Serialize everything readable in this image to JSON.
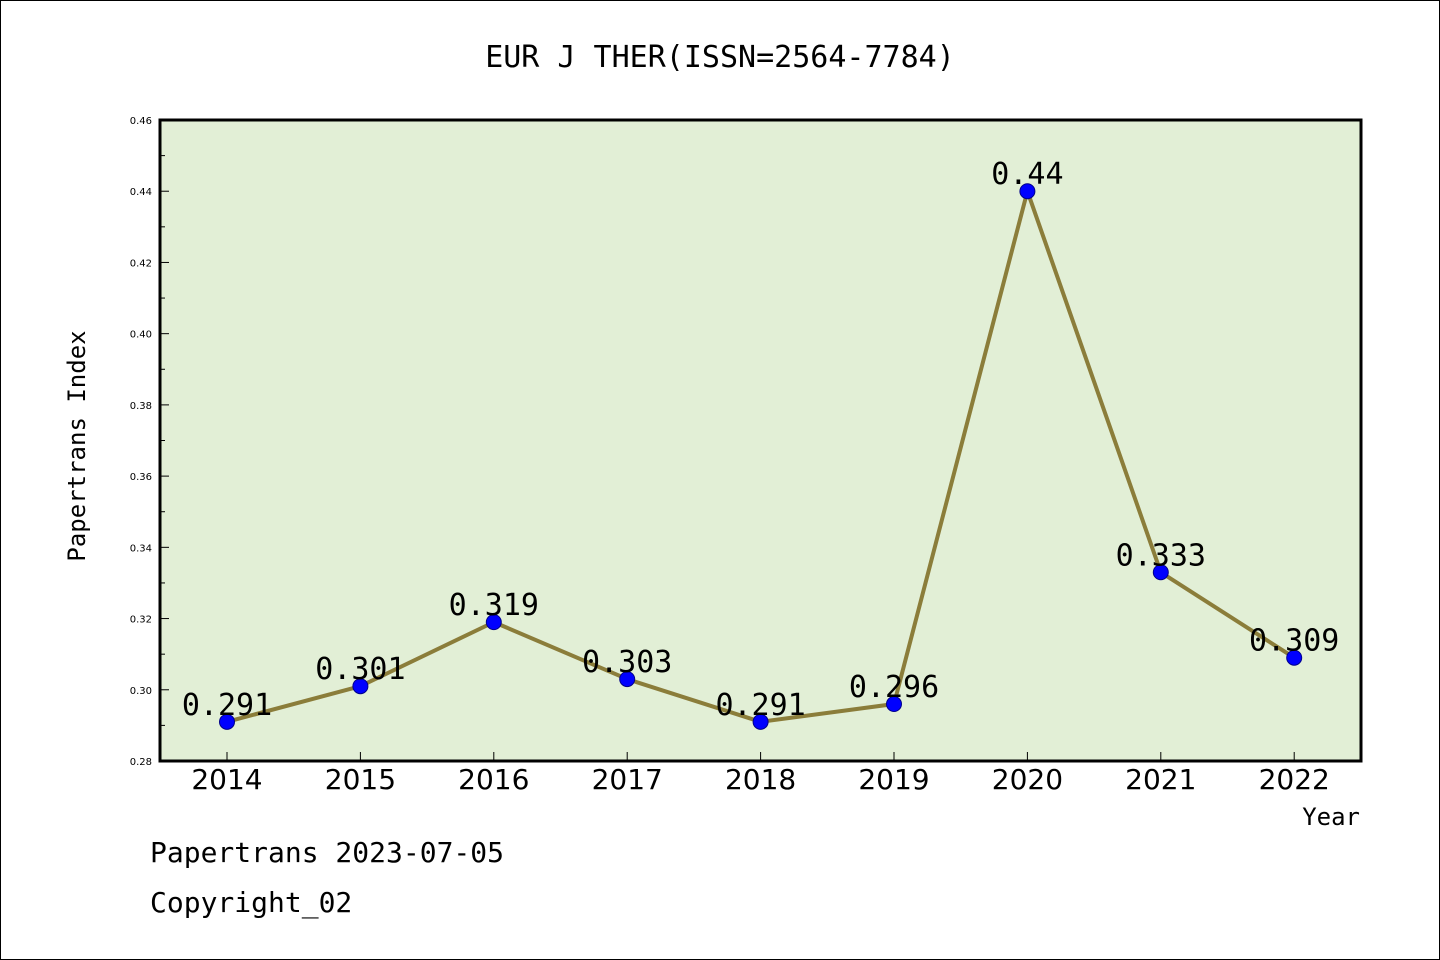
{
  "chart_data": {
    "type": "line",
    "title": "EUR J THER(ISSN=2564-7784)",
    "xlabel": "Year",
    "ylabel": "Papertrans Index",
    "categories": [
      "2014",
      "2015",
      "2016",
      "2017",
      "2018",
      "2019",
      "2020",
      "2021",
      "2022"
    ],
    "values": [
      0.291,
      0.301,
      0.319,
      0.303,
      0.291,
      0.296,
      0.44,
      0.333,
      0.309
    ],
    "data_labels": [
      "0.291",
      "0.301",
      "0.319",
      "0.303",
      "0.291",
      "0.296",
      "0.44",
      "0.333",
      "0.309"
    ],
    "ylim": [
      0.28,
      0.46
    ],
    "yticks": [
      0.28,
      0.3,
      0.32,
      0.34,
      0.36,
      0.38,
      0.4,
      0.42,
      0.44,
      0.46
    ],
    "ytick_labels": [
      "0.28",
      "0.30",
      "0.32",
      "0.34",
      "0.36",
      "0.38",
      "0.40",
      "0.42",
      "0.44",
      "0.46"
    ],
    "grid": false,
    "colors": {
      "plot_background": "#e2efd6",
      "line": "#8b7d3a",
      "marker": "#0000ff",
      "marker_edge": "#00008b",
      "axis": "#000000"
    }
  },
  "footer": {
    "line1": "Papertrans 2023-07-05",
    "line2": "Copyright_02"
  }
}
